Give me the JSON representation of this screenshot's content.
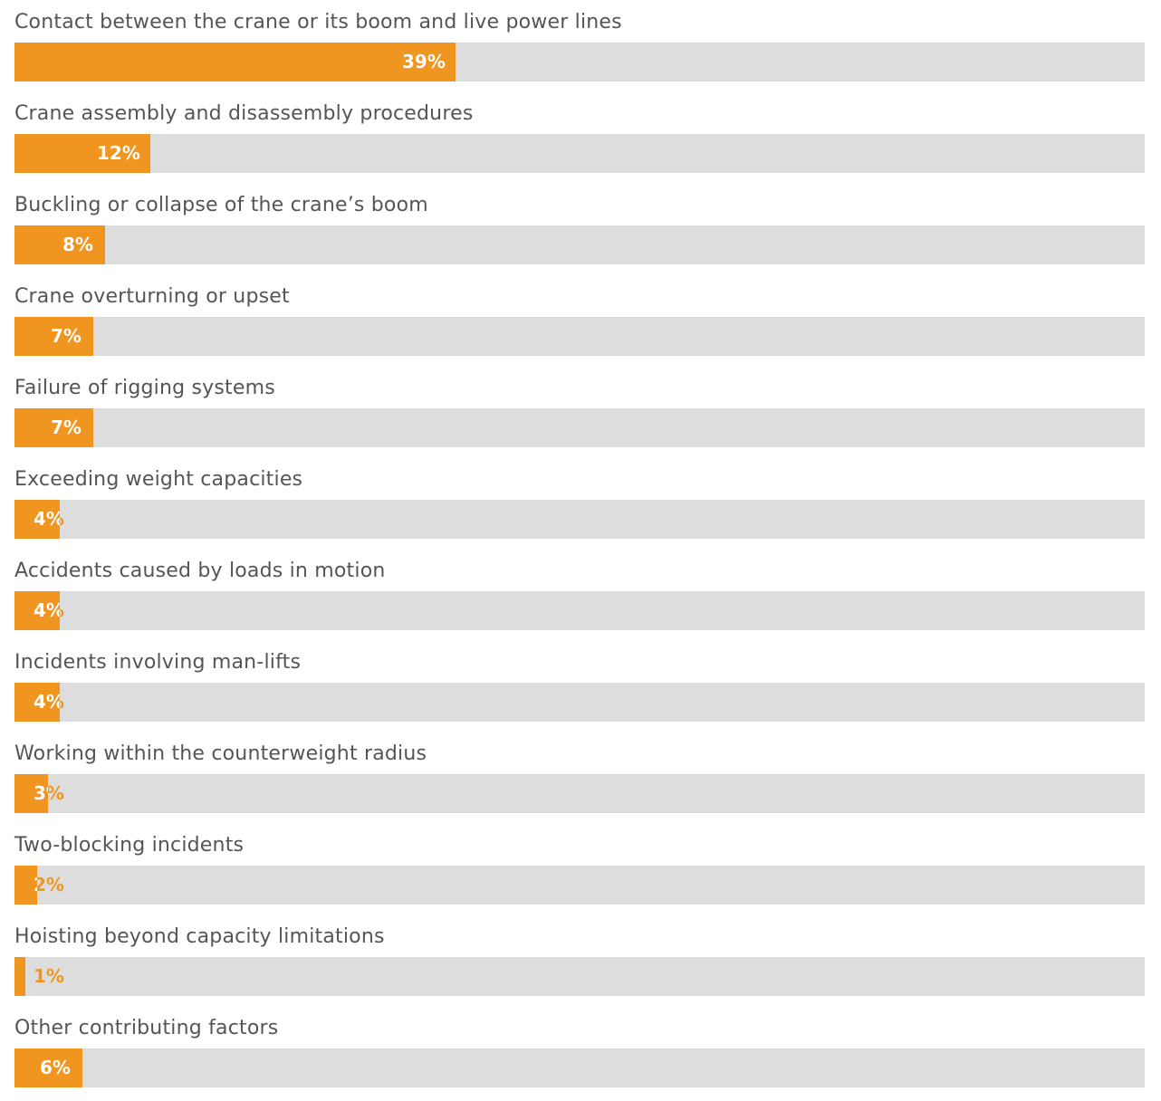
{
  "chart_data": {
    "type": "bar",
    "orientation": "horizontal",
    "categories": [
      "Contact between the crane or its boom and live power lines",
      "Crane assembly and disassembly procedures",
      "Buckling or collapse of the crane’s boom",
      "Crane overturning or upset",
      "Failure of rigging systems",
      "Exceeding weight capacities",
      "Accidents caused by loads in motion",
      "Incidents involving man-lifts",
      "Working within the counterweight radius",
      "Two-blocking incidents",
      "Hoisting beyond capacity limitations",
      "Other contributing factors"
    ],
    "values": [
      39,
      12,
      8,
      7,
      7,
      4,
      4,
      4,
      3,
      2,
      1,
      6
    ],
    "value_labels": [
      "39%",
      "12%",
      "8%",
      "7%",
      "7%",
      "4%",
      "4%",
      "4%",
      "3%",
      "2%",
      "1%",
      "6%"
    ],
    "unit": "%",
    "xlim": [
      0,
      100
    ],
    "title": "",
    "xlabel": "",
    "ylabel": "",
    "grid": false,
    "legend": "none",
    "colors": {
      "bar": "#f0951f",
      "track": "#dddddd",
      "label_text": "#555555",
      "value_text_on_bar": "#ffffff",
      "value_text_off_bar": "#f0951f"
    }
  }
}
